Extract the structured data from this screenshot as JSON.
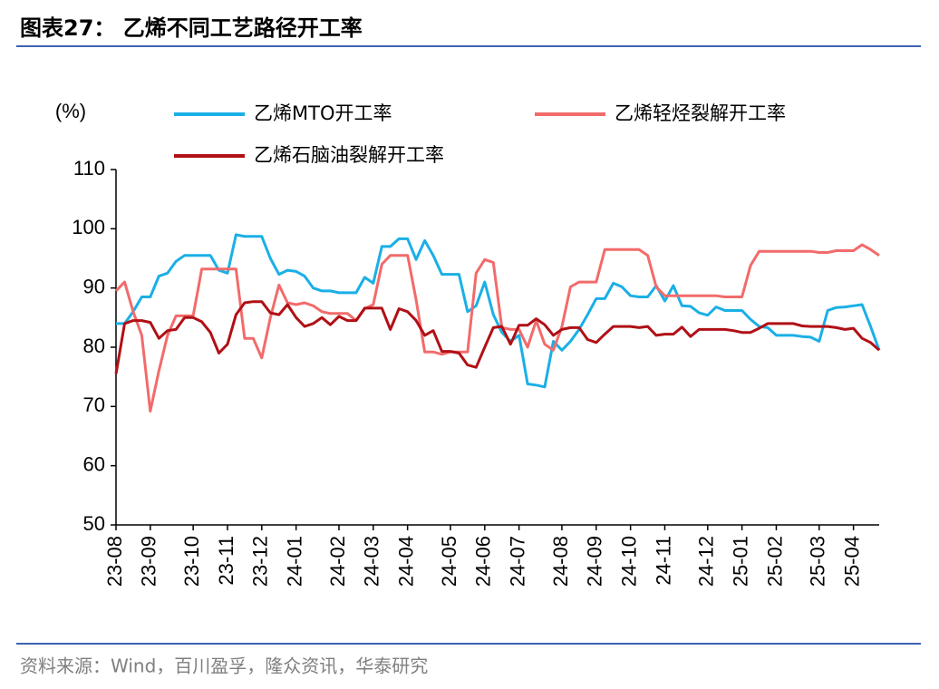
{
  "chart_data": {
    "type": "line",
    "title": "图表27：  乙烯不同工艺路径开工率",
    "y_label": "(%)",
    "source": "资料来源：Wind，百川盈孚，隆众资讯，华泰研究",
    "categories": [
      "23-08",
      null,
      null,
      null,
      "23-09",
      null,
      null,
      null,
      null,
      "23-10",
      null,
      null,
      null,
      "23-11",
      null,
      null,
      null,
      "23-12",
      null,
      null,
      null,
      "24-01",
      null,
      null,
      null,
      null,
      "24-02",
      null,
      null,
      null,
      "24-03",
      null,
      null,
      null,
      "24-04",
      null,
      null,
      null,
      null,
      "24-05",
      null,
      null,
      null,
      "24-06",
      null,
      null,
      null,
      "24-07",
      null,
      null,
      null,
      null,
      "24-08",
      null,
      null,
      null,
      "24-09",
      null,
      null,
      null,
      "24-10",
      null,
      null,
      null,
      "24-11",
      null,
      null,
      null,
      null,
      "24-12",
      null,
      null,
      null,
      "25-01",
      null,
      null,
      null,
      "25-02",
      null,
      null,
      null,
      null,
      "25-03",
      null,
      null,
      null,
      "25-04",
      null,
      null,
      null
    ],
    "series": [
      {
        "name": "乙烯MTO开工率",
        "color": "#1aafe6",
        "values": [
          84,
          84,
          86,
          88.5,
          88.5,
          92,
          92.5,
          94.5,
          95.5,
          95.5,
          95.5,
          95.5,
          93,
          92.5,
          99,
          98.7,
          98.7,
          98.7,
          95,
          92.3,
          93,
          92.8,
          92,
          90,
          89.5,
          89.5,
          89.2,
          89.2,
          89.2,
          91.8,
          90.8,
          97,
          97,
          98.3,
          98.3,
          94.8,
          98,
          95.5,
          92.3,
          92.3,
          92.3,
          86,
          87,
          91,
          85.5,
          82.5,
          81,
          82,
          73.8,
          73.6,
          73.3,
          81,
          79.5,
          81,
          83,
          85.5,
          88.2,
          88.2,
          90.8,
          90.2,
          88.7,
          88.5,
          88.5,
          90.4,
          87.8,
          90.4,
          87,
          86.9,
          85.8,
          85.4,
          86.8,
          86.2,
          86.2,
          86.2,
          84.7,
          83.5,
          83.3,
          82,
          82,
          82,
          81.8,
          81.7,
          81,
          86.2,
          86.7,
          86.8,
          87,
          87.2,
          83.5,
          79.5
        ]
      },
      {
        "name": "乙烯轻烃裂解开工率",
        "color": "#f26b6b",
        "values": [
          89.5,
          91,
          86,
          82,
          69.2,
          76,
          82,
          85.3,
          85.3,
          85.3,
          93.2,
          93.2,
          93.2,
          93.2,
          93.2,
          81.5,
          81.5,
          78.2,
          85,
          90.5,
          87.5,
          87.2,
          87.5,
          87,
          86,
          85.7,
          85.7,
          85.7,
          84.5,
          86.5,
          87.2,
          94,
          95.5,
          95.5,
          95.5,
          88,
          79.2,
          79.2,
          78.8,
          79.2,
          79.2,
          79.2,
          92.5,
          94.8,
          94.3,
          83.3,
          83,
          83,
          80,
          84.5,
          80.5,
          79.5,
          83.5,
          90.2,
          91,
          91,
          91,
          96.5,
          96.5,
          96.5,
          96.5,
          96.5,
          95.5,
          90.2,
          88.7,
          88.7,
          88.7,
          88.7,
          88.7,
          88.7,
          88.7,
          88.5,
          88.5,
          88.5,
          93.8,
          96.2,
          96.2,
          96.2,
          96.2,
          96.2,
          96.2,
          96.2,
          96,
          96,
          96.3,
          96.3,
          96.3,
          97.3,
          96.5,
          95.5
        ]
      },
      {
        "name": "乙烯石脑油裂解开工率",
        "color": "#b01016",
        "values": [
          75.5,
          84,
          84.5,
          84.5,
          84.2,
          81.5,
          82.8,
          83,
          85,
          85,
          84.3,
          82.5,
          79,
          80.5,
          85.5,
          87.5,
          87.7,
          87.7,
          85.8,
          85.5,
          87.2,
          85,
          83.5,
          84,
          85,
          83.8,
          85.2,
          84.5,
          84.5,
          86.6,
          86.6,
          86.6,
          83,
          86.5,
          86,
          84.5,
          82,
          82.8,
          79.3,
          79.3,
          79,
          77,
          76.6,
          80,
          83.3,
          83.5,
          80.5,
          83.7,
          83.7,
          84.8,
          83.8,
          82,
          83,
          83.3,
          83.3,
          81.3,
          80.8,
          82.2,
          83.5,
          83.5,
          83.5,
          83.3,
          83.5,
          82,
          82.2,
          82.2,
          83.4,
          81.8,
          83,
          83,
          83,
          83,
          82.8,
          82.5,
          82.5,
          83.2,
          84,
          84,
          84,
          84,
          83.6,
          83.5,
          83.5,
          83.5,
          83.3,
          83,
          83.2,
          81.5,
          80.8,
          79.5
        ]
      }
    ],
    "ylim": [
      50,
      110
    ],
    "yticks": [
      50,
      60,
      70,
      80,
      90,
      100,
      110
    ]
  }
}
